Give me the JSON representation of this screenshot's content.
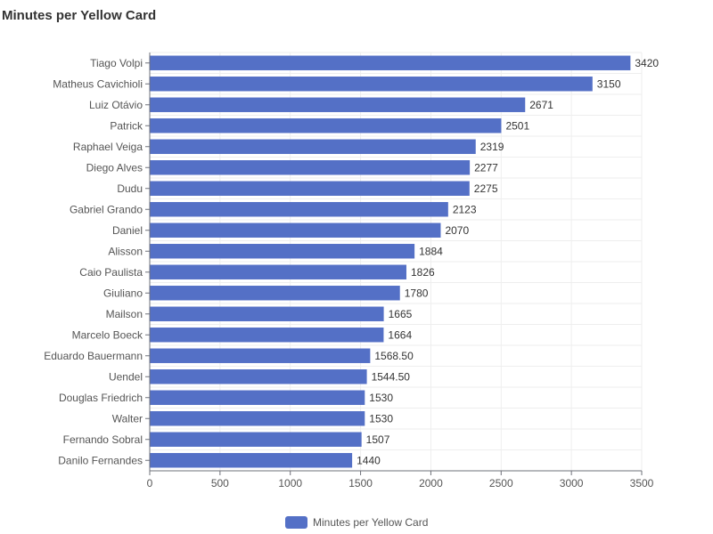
{
  "chart_data": {
    "type": "bar",
    "orientation": "horizontal",
    "title": "Minutes per Yellow Card",
    "categories": [
      "Tiago Volpi",
      "Matheus Cavichioli",
      "Luiz Otávio",
      "Patrick",
      "Raphael Veiga",
      "Diego Alves",
      "Dudu",
      "Gabriel Grando",
      "Daniel",
      "Alisson",
      "Caio Paulista",
      "Giuliano",
      "Mailson",
      "Marcelo Boeck",
      "Eduardo Bauermann",
      "Uendel",
      "Douglas Friedrich",
      "Walter",
      "Fernando Sobral",
      "Danilo Fernandes"
    ],
    "series": [
      {
        "name": "Minutes per Yellow Card",
        "color": "#5470c6",
        "values": [
          3420,
          3150,
          2671,
          2501,
          2319,
          2277,
          2275,
          2123,
          2070,
          1884,
          1826,
          1780,
          1665,
          1664,
          1568.5,
          1544.5,
          1530,
          1530,
          1507,
          1440
        ],
        "labels": [
          "3420",
          "3150",
          "2671",
          "2501",
          "2319",
          "2277",
          "2275",
          "2123",
          "2070",
          "1884",
          "1826",
          "1780",
          "1665",
          "1664",
          "1568.50",
          "1544.50",
          "1530",
          "1530",
          "1507",
          "1440"
        ]
      }
    ],
    "xlim": [
      0,
      3500
    ],
    "xticks": [
      0,
      500,
      1000,
      1500,
      2000,
      2500,
      3000,
      3500
    ],
    "xlabel": "",
    "ylabel": "",
    "grid": true,
    "legend": "bottom-center"
  }
}
